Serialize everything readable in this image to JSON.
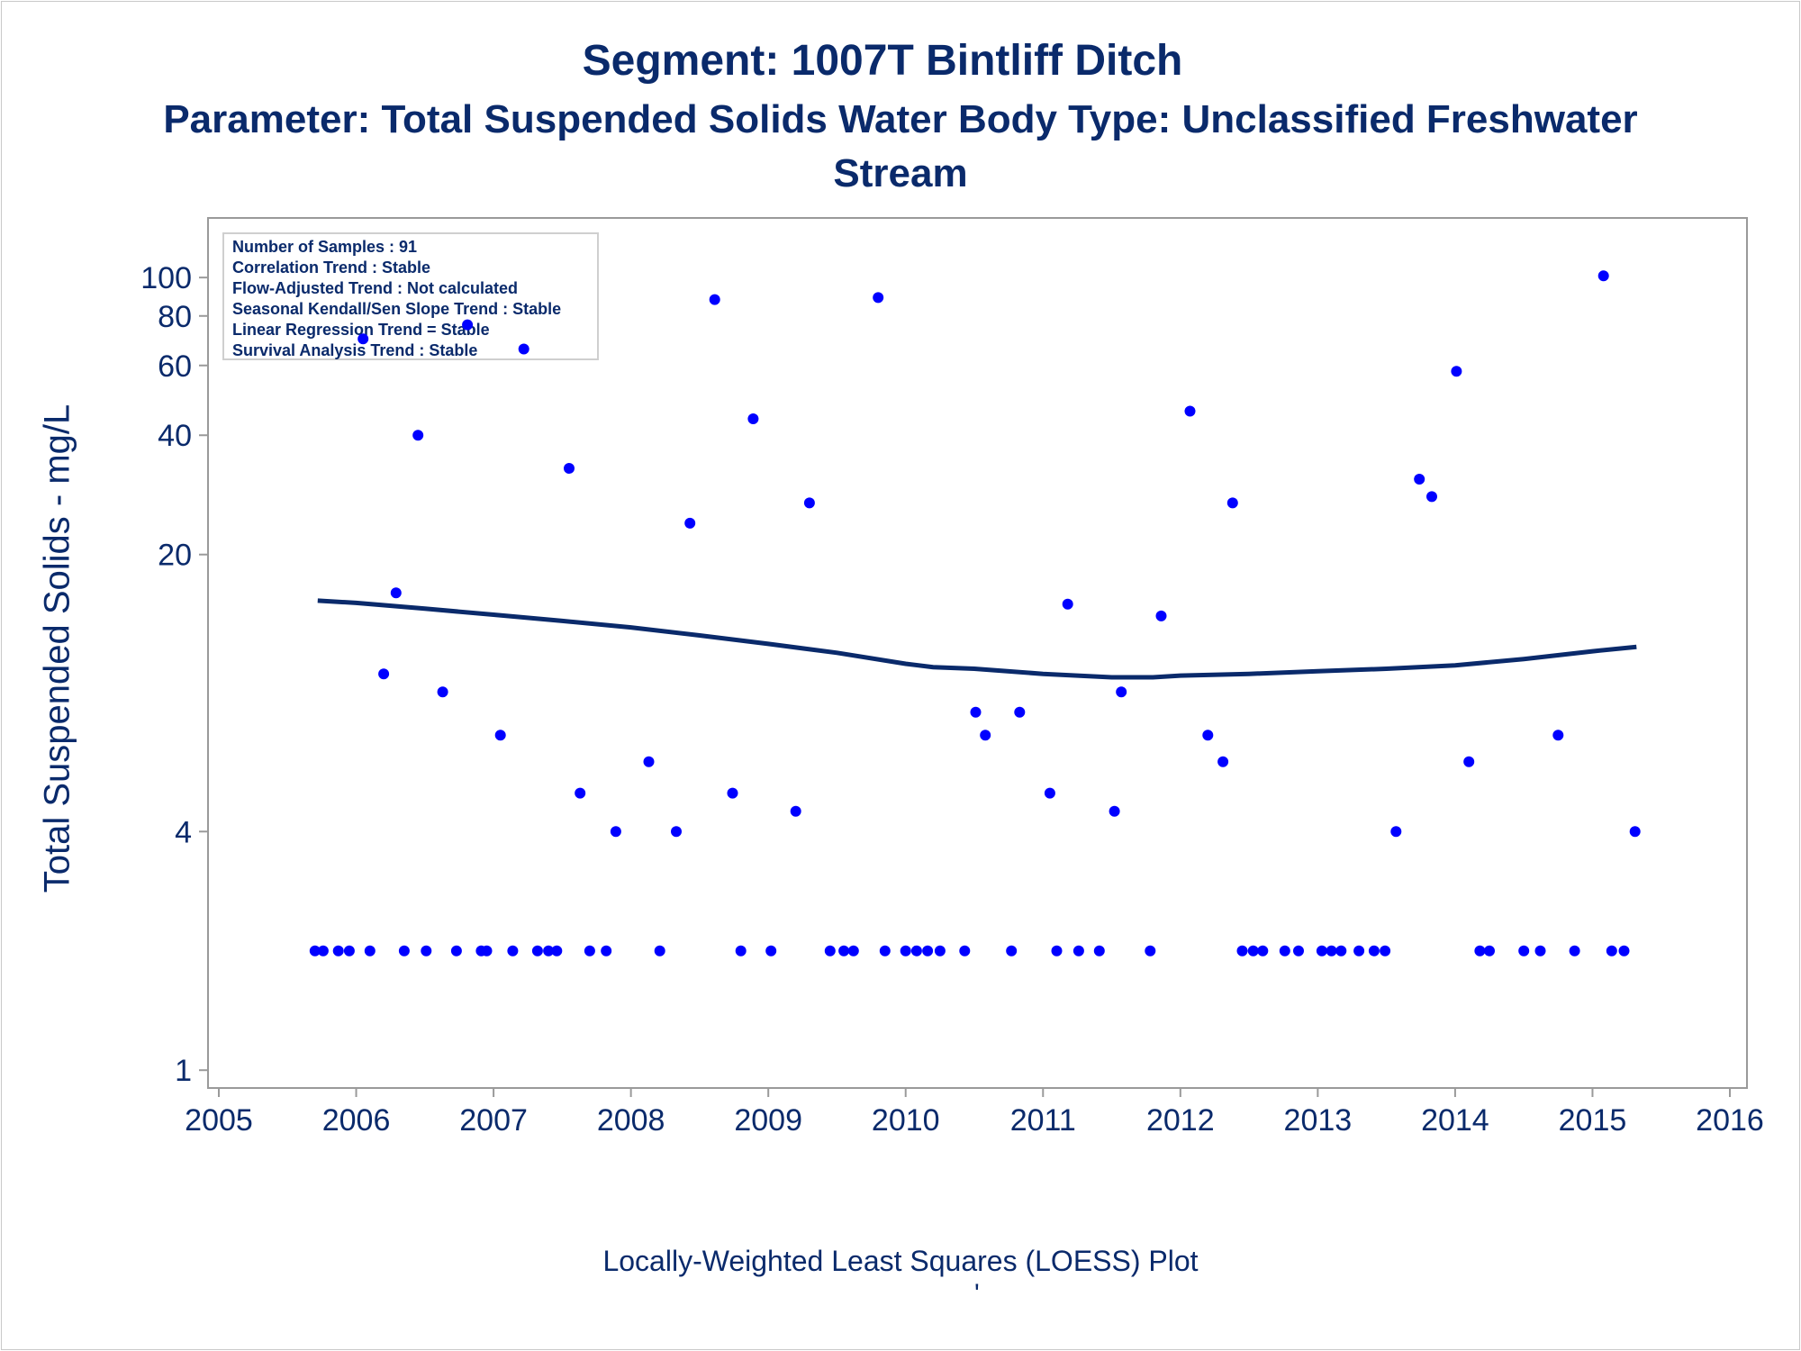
{
  "chart_data": {
    "type": "scatter",
    "title": "Segment: 1007T  Bintliff Ditch",
    "subtitle_line1": "Parameter: Total Suspended Solids   Water Body Type: Unclassified Freshwater",
    "subtitle_line2": "Stream",
    "ylabel": "Total Suspended Solids - mg/L",
    "footnote": "Locally-Weighted Least Squares (LOESS) Plot",
    "footnote2": "'",
    "y_scale": "log",
    "xlim": [
      2005,
      2016
    ],
    "ylim": [
      0.95,
      130
    ],
    "x_ticks": [
      "2005",
      "2006",
      "2007",
      "2008",
      "2009",
      "2010",
      "2011",
      "2012",
      "2013",
      "2014",
      "2015",
      "2016"
    ],
    "y_ticks": [
      "1",
      "4",
      "20",
      "40",
      "60",
      "80",
      "100"
    ],
    "grid": false,
    "marker_color": "#0000ff",
    "line_color": "#0a2a6b",
    "stats_box": {
      "placement": "top-left",
      "lines": [
        "Number of Samples : 91",
        "Correlation Trend : Stable",
        "Flow-Adjusted Trend : Not calculated",
        "Seasonal Kendall/Sen Slope Trend : Stable",
        "Linear Regression Trend = Stable",
        "Survival Analysis Trend : Stable"
      ]
    },
    "series": [
      {
        "kind": "points",
        "x": [
          2005.7,
          2005.76,
          2005.87,
          2005.95,
          2006.05,
          2006.1,
          2006.2,
          2006.29,
          2006.35,
          2006.45,
          2006.51,
          2006.63,
          2006.73,
          2006.81,
          2006.91,
          2006.95,
          2007.05,
          2007.14,
          2007.22,
          2007.32,
          2007.4,
          2007.46,
          2007.55,
          2007.63,
          2007.7,
          2007.82,
          2007.89,
          2008.13,
          2008.21,
          2008.33,
          2008.43,
          2008.61,
          2008.74,
          2008.8,
          2008.89,
          2009.02,
          2009.2,
          2009.3,
          2009.45,
          2009.55,
          2009.62,
          2009.8,
          2009.85,
          2010.0,
          2010.08,
          2010.16,
          2010.25,
          2010.43,
          2010.51,
          2010.58,
          2010.77,
          2010.83,
          2011.05,
          2011.1,
          2011.18,
          2011.26,
          2011.41,
          2011.52,
          2011.57,
          2011.78,
          2011.86,
          2012.07,
          2012.2,
          2012.31,
          2012.38,
          2012.45,
          2012.53,
          2012.6,
          2012.76,
          2012.86,
          2013.03,
          2013.1,
          2013.17,
          2013.3,
          2013.41,
          2013.49,
          2013.57,
          2013.74,
          2013.83,
          2014.01,
          2014.1,
          2014.18,
          2014.25,
          2014.5,
          2014.62,
          2014.75,
          2014.87,
          2015.08,
          2015.14,
          2015.23,
          2015.31
        ],
        "y": [
          2,
          2,
          2,
          2,
          70,
          2,
          10,
          16,
          2,
          40,
          2,
          9,
          2,
          76,
          2,
          2,
          7,
          2,
          66,
          2,
          2,
          2,
          33,
          5,
          2,
          2,
          4,
          6,
          2,
          4,
          24,
          88,
          5,
          2,
          44,
          2,
          4.5,
          27,
          2,
          2,
          2,
          89,
          2,
          2,
          2,
          2,
          2,
          2,
          8,
          7,
          2,
          8,
          5,
          2,
          15,
          2,
          2,
          4.5,
          9,
          2,
          14,
          46,
          7,
          6,
          27,
          2,
          2,
          2,
          2,
          2,
          2,
          2,
          2,
          2,
          2,
          2,
          4,
          31,
          28,
          58,
          6,
          2,
          2,
          2,
          2,
          7,
          2,
          101,
          2,
          2,
          4
        ]
      },
      {
        "kind": "loess",
        "x": [
          2005.72,
          2006.0,
          2006.5,
          2007.0,
          2007.5,
          2008.0,
          2008.5,
          2009.0,
          2009.5,
          2010.0,
          2010.2,
          2010.5,
          2011.0,
          2011.5,
          2011.8,
          2012.0,
          2012.5,
          2013.0,
          2013.5,
          2014.0,
          2014.5,
          2015.0,
          2015.32
        ],
        "y": [
          15.3,
          15.1,
          14.6,
          14.1,
          13.6,
          13.1,
          12.5,
          11.9,
          11.3,
          10.6,
          10.4,
          10.3,
          10.0,
          9.8,
          9.8,
          9.9,
          10.0,
          10.15,
          10.3,
          10.5,
          10.9,
          11.4,
          11.7
        ]
      }
    ]
  }
}
